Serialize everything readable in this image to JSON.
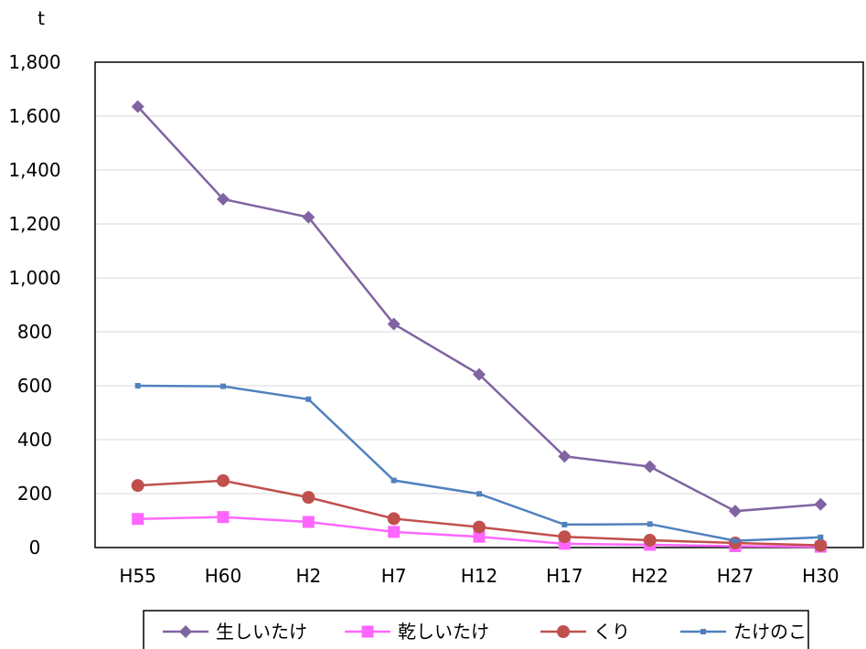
{
  "chart_data": {
    "type": "line",
    "ylabel": "t",
    "ylim": [
      0,
      1800
    ],
    "y_ticks": [
      "0",
      "200",
      "400",
      "600",
      "800",
      "1,000",
      "1,200",
      "1,400",
      "1,600",
      "1,800"
    ],
    "y_tick_values": [
      0,
      200,
      400,
      600,
      800,
      1000,
      1200,
      1400,
      1600,
      1800
    ],
    "categories": [
      "H55",
      "H60",
      "H2",
      "H7",
      "H12",
      "H17",
      "H22",
      "H27",
      "H30"
    ],
    "grid": true,
    "legend_position": "bottom",
    "series": [
      {
        "name": "生しいたけ",
        "color": "#8064a2",
        "marker": "diamond",
        "values": [
          1635,
          1292,
          1225,
          829,
          642,
          338,
          300,
          135,
          160
        ]
      },
      {
        "name": "乾しいたけ",
        "color": "#ff66ff",
        "marker": "square",
        "values": [
          106,
          113,
          95,
          58,
          40,
          14,
          10,
          5,
          3
        ]
      },
      {
        "name": "くり",
        "color": "#c0504d",
        "marker": "circle",
        "values": [
          230,
          248,
          186,
          107,
          76,
          40,
          27,
          17,
          8
        ]
      },
      {
        "name": "たけのこ",
        "color": "#4f81bd",
        "marker": "small-square",
        "values": [
          600,
          598,
          550,
          249,
          199,
          85,
          87,
          25,
          38
        ]
      }
    ]
  }
}
